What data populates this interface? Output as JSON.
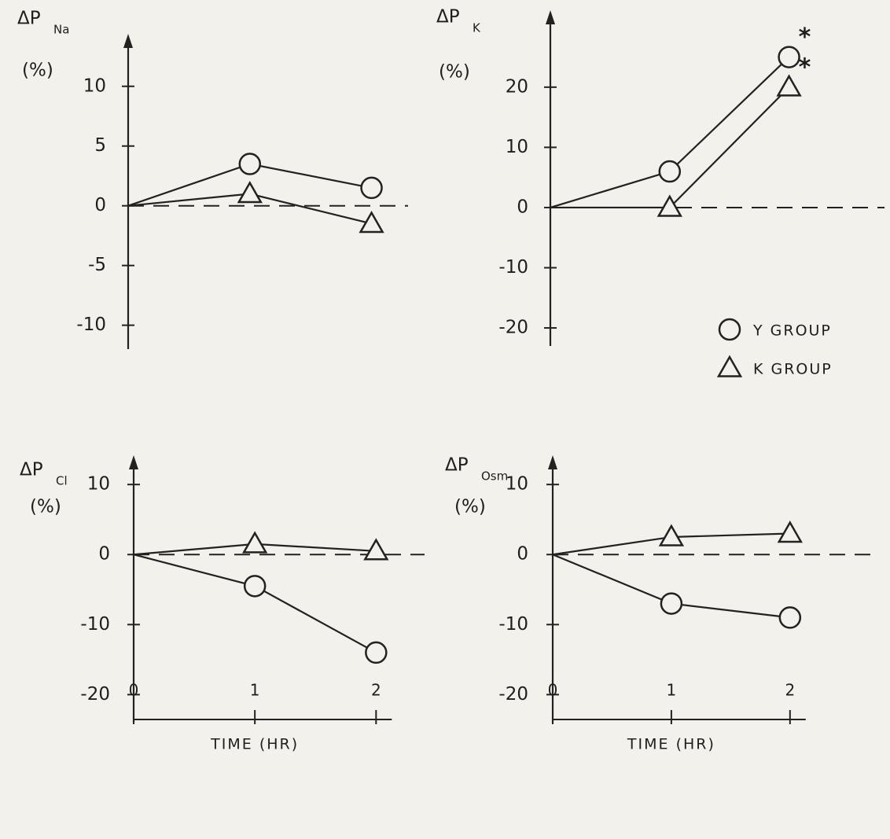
{
  "chart_data": [
    {
      "type": "line",
      "title": "ΔP",
      "title_sub": "Na",
      "ylabel": "(%)",
      "x": [
        0,
        1,
        2
      ],
      "xlim": [
        0,
        2.3
      ],
      "ylim": [
        -12,
        14
      ],
      "yticks": [
        -10,
        -5,
        0,
        5,
        10
      ],
      "series": [
        {
          "marker": "circle",
          "values": [
            0,
            3.5,
            1.5
          ]
        },
        {
          "marker": "triangle",
          "values": [
            0,
            1,
            -1.5
          ]
        }
      ]
    },
    {
      "type": "line",
      "title": "ΔP",
      "title_sub": "K",
      "ylabel": "(%)",
      "x": [
        0,
        1,
        2
      ],
      "xlim": [
        0,
        2.8
      ],
      "ylim": [
        -23,
        32
      ],
      "yticks": [
        -20,
        -10,
        0,
        10,
        20
      ],
      "series": [
        {
          "name": "Y GROUP",
          "marker": "circle",
          "values": [
            0,
            6,
            25
          ]
        },
        {
          "name": "K GROUP",
          "marker": "triangle",
          "values": [
            0,
            0,
            20
          ]
        }
      ],
      "annotations": [
        "*",
        "*"
      ]
    },
    {
      "type": "line",
      "title": "ΔP",
      "title_sub": "Cl",
      "ylabel": "(%)",
      "x": [
        0,
        1,
        2
      ],
      "xlim": [
        0,
        2.4
      ],
      "xticks": [
        0,
        1,
        2
      ],
      "xlabel": "TIME (HR)",
      "ylim": [
        -24,
        13.5
      ],
      "yticks": [
        -20,
        -10,
        0,
        10
      ],
      "series": [
        {
          "marker": "circle",
          "values": [
            0,
            -4.5,
            -14
          ]
        },
        {
          "marker": "triangle",
          "values": [
            0,
            1.5,
            0.5
          ]
        }
      ]
    },
    {
      "type": "line",
      "title": "ΔP",
      "title_sub": "Osm",
      "ylabel": "(%)",
      "x": [
        0,
        1,
        2
      ],
      "xlim": [
        0,
        2.75
      ],
      "xticks": [
        0,
        1,
        2
      ],
      "xlabel": "TIME (HR)",
      "ylim": [
        -24,
        13.5
      ],
      "yticks": [
        -20,
        -10,
        0,
        10
      ],
      "series": [
        {
          "marker": "circle",
          "values": [
            0,
            -7,
            -9
          ]
        },
        {
          "marker": "triangle",
          "values": [
            0,
            2.5,
            3
          ]
        }
      ]
    }
  ]
}
